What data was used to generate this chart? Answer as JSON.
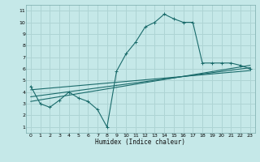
{
  "xlabel": "Humidex (Indice chaleur)",
  "ylabel": "",
  "bg_color": "#c5e8e8",
  "grid_color": "#aed4d4",
  "line_color": "#1a6b6b",
  "xlim": [
    -0.5,
    23.5
  ],
  "ylim": [
    0.5,
    11.5
  ],
  "xticks": [
    0,
    1,
    2,
    3,
    4,
    5,
    6,
    7,
    8,
    9,
    10,
    11,
    12,
    13,
    14,
    15,
    16,
    17,
    18,
    19,
    20,
    21,
    22,
    23
  ],
  "yticks": [
    1,
    2,
    3,
    4,
    5,
    6,
    7,
    8,
    9,
    10,
    11
  ],
  "curve1_x": [
    0,
    1,
    2,
    3,
    4,
    5,
    6,
    7,
    8,
    9,
    10,
    11,
    12,
    13,
    14,
    15,
    16,
    17,
    18,
    19,
    20,
    21,
    22,
    23
  ],
  "curve1_y": [
    4.5,
    3.0,
    2.7,
    3.3,
    4.0,
    3.5,
    3.2,
    2.5,
    1.0,
    5.8,
    7.3,
    8.3,
    9.6,
    10.0,
    10.7,
    10.3,
    10.0,
    10.0,
    6.5,
    6.5,
    6.5,
    6.5,
    6.3,
    6.0
  ],
  "curve2_x": [
    0,
    23
  ],
  "curve2_y": [
    3.2,
    6.3
  ],
  "curve3_x": [
    0,
    23
  ],
  "curve3_y": [
    3.6,
    6.1
  ],
  "curve4_x": [
    0,
    23
  ],
  "curve4_y": [
    4.2,
    5.85
  ]
}
